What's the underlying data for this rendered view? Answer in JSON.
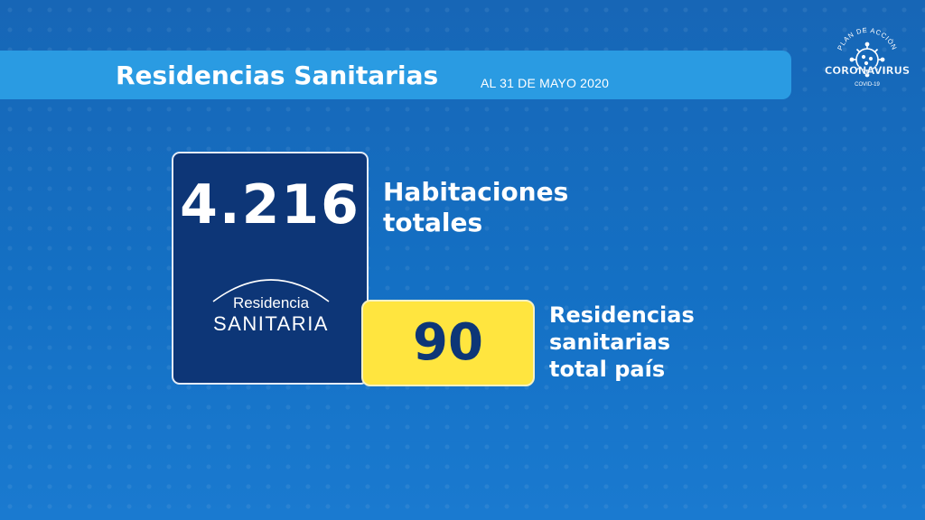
{
  "header": {
    "title": "Residencias Sanitarias",
    "date": "AL 31 DE MAYO 2020"
  },
  "logo": {
    "icon": "coronavirus-icon",
    "top_text": "PLAN DE ACCIÓN",
    "main_text": "CORONAVIRUS",
    "bottom_text": "COVID-19"
  },
  "rooms": {
    "value": "4.216",
    "label_line1": "Habitaciones",
    "label_line2": "totales"
  },
  "brand": {
    "line1": "Residencia",
    "line2": "SANITARIA"
  },
  "residences": {
    "value": "90",
    "label_line1": "Residencias",
    "label_line2": "sanitarias",
    "label_line3": "total país"
  },
  "colors": {
    "background": "#1467b8",
    "header_bar": "#2a9be2",
    "dark_card": "#0d3677",
    "yellow_card": "#ffe53f"
  }
}
